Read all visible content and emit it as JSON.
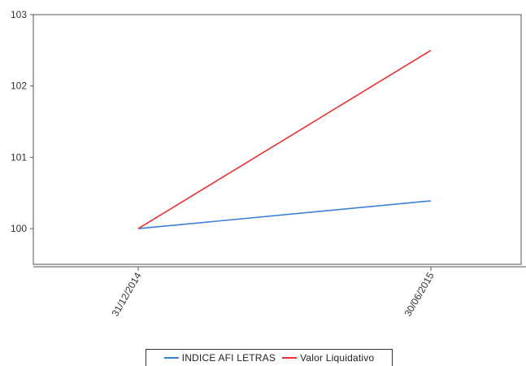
{
  "chart_data": {
    "type": "line",
    "title": "",
    "xlabel": "",
    "ylabel": "",
    "categories": [
      "31/12/2014",
      "30/06/2015"
    ],
    "ylim": [
      99.5,
      103
    ],
    "yticks": [
      100,
      101,
      102,
      103
    ],
    "grid": false,
    "legend_position": "bottom",
    "series": [
      {
        "name": "INDICE AFI LETRAS",
        "color": "#3a7fd9",
        "values": [
          100.0,
          100.39
        ]
      },
      {
        "name": "Valor Liquidativo",
        "color": "#e8302f",
        "values": [
          100.0,
          102.5
        ]
      }
    ]
  },
  "colors": {
    "axis": "#555555",
    "tick_text": "#333333"
  }
}
